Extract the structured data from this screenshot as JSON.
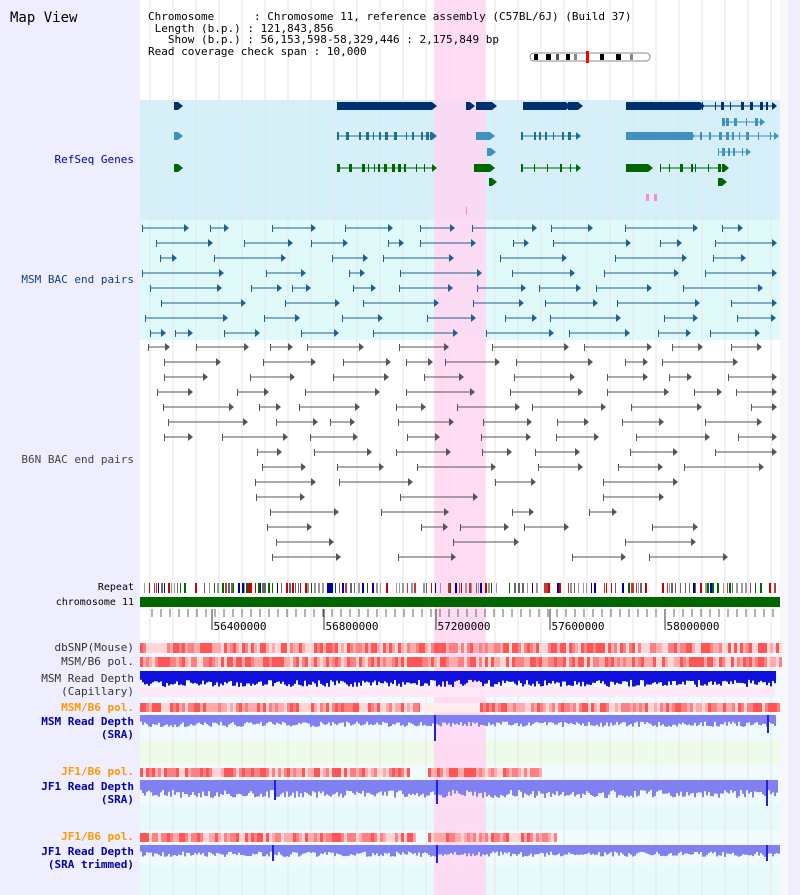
{
  "title": "Map View",
  "info": {
    "chromosome_label": "Chromosome",
    "chromosome_value": "Chromosome 11, reference assembly (C57BL/6J) (Build 37)",
    "length_label": "Length (b.p.)",
    "length_value": "121,843,856",
    "show_label": "Show (b.p.)",
    "show_value": "56,153,598-58,329,446 : 2,175,849 bp",
    "span_label": "Read coverage check span",
    "span_value": "10,000"
  },
  "tracks": {
    "refseq": "RefSeq Genes",
    "msm_bac": "MSM BAC end pairs",
    "b6n_bac": "B6N BAC end pairs",
    "repeat": "Repeat",
    "chromosome": "chromosome 11",
    "dbsnp": "dbSNP(Mouse)",
    "msm_b6_pol": "MSM/B6 pol.",
    "msm_depth_cap_1": "MSM Read Depth",
    "msm_depth_cap_2": "(Capillary)",
    "msm_b6_pol_2": "MSM/B6 pol.",
    "msm_depth_sra_1": "MSM Read Depth",
    "msm_depth_sra_2": "(SRA)",
    "jf1_b6_pol": "JF1/B6 pol.",
    "jf1_depth_sra_1": "JF1 Read Depth",
    "jf1_depth_sra_2": "(SRA)",
    "jf1_b6_pol_2": "JF1/B6 pol.",
    "jf1_depth_trim_1": "JF1 Read Depth",
    "jf1_depth_trim_2": "(SRA trimmed)"
  },
  "axis": {
    "ticks": [
      "56400000",
      "56800000",
      "57200000",
      "57600000",
      "58000000"
    ]
  },
  "colors": {
    "refseq_bg": "#d6f0fa",
    "msm_bg": "#e0fafa",
    "highlight": "#ffd6f2",
    "gene_dark": "#003070",
    "gene_mid": "#4090c0",
    "gene_green": "#006600",
    "msm_pair": "#206090",
    "b6n_pair": "#555555",
    "chromosome": "#006600",
    "depth_dark": "#1010dd",
    "depth_light": "#8080f0",
    "orange_label": "#ff9900",
    "blue_label": "#0000aa"
  }
}
